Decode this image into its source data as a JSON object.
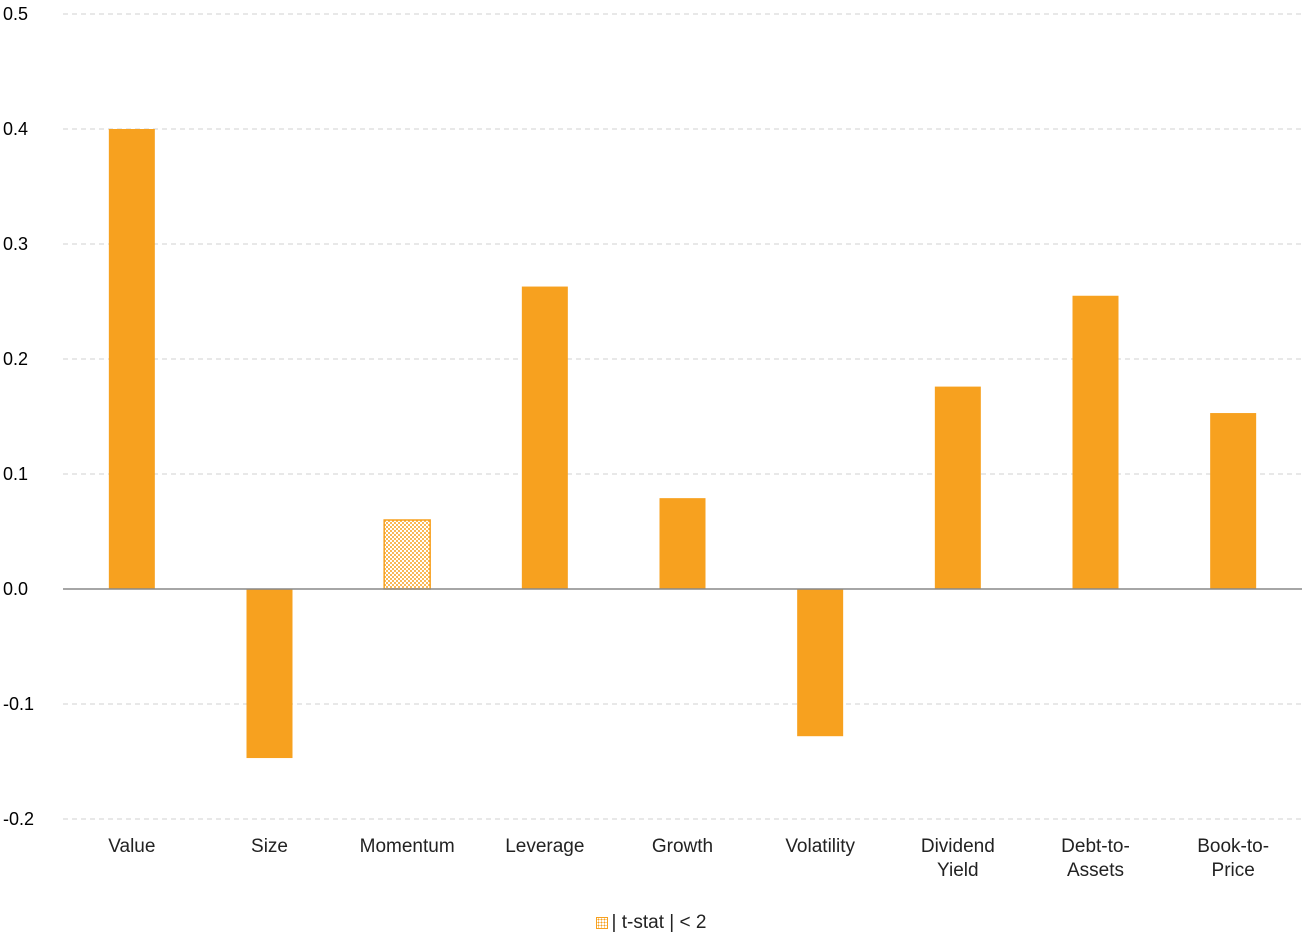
{
  "colors": {
    "bar": "#f7a11f",
    "grid": "#d0d0d0",
    "axis": "#888888"
  },
  "legend": {
    "label": "| t-stat | < 2"
  },
  "chart_data": {
    "type": "bar",
    "categories": [
      [
        "Value"
      ],
      [
        "Size"
      ],
      [
        "Momentum"
      ],
      [
        "Leverage"
      ],
      [
        "Growth"
      ],
      [
        "Volatility"
      ],
      [
        "Dividend",
        "Yield"
      ],
      [
        "Debt-to-",
        "Assets"
      ],
      [
        "Book-to-",
        "Price"
      ]
    ],
    "values": [
      0.4,
      -0.147,
      0.06,
      0.263,
      0.079,
      -0.128,
      0.176,
      0.255,
      0.153
    ],
    "insignificant": [
      false,
      false,
      true,
      false,
      false,
      false,
      false,
      false,
      false
    ],
    "yticks": [
      "0.5",
      "0.4",
      "0.3",
      "0.2",
      "0.1",
      "0.0",
      "-0.1",
      "-0.2"
    ],
    "ylim": [
      -0.2,
      0.5
    ],
    "grid": true,
    "legend_position": "bottom-center"
  }
}
